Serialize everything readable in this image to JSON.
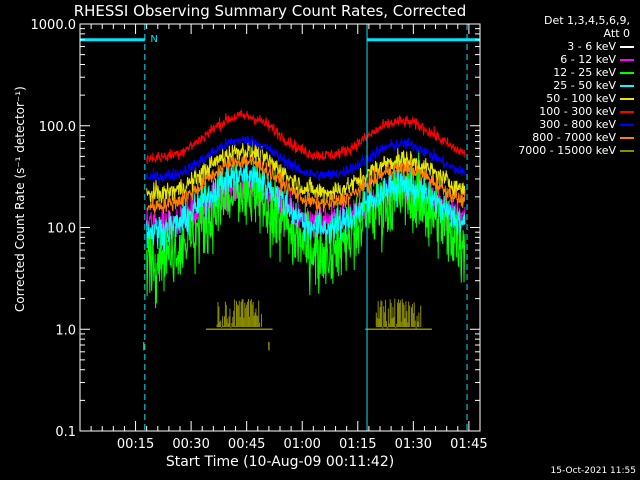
{
  "colors": {
    "background": "#000000",
    "axes": "#ffffff",
    "marker": "#00e5ff"
  },
  "chart_data": {
    "type": "line",
    "title": "RHESSI Observing Summary Count Rates, Corrected",
    "xlabel": "Start Time (10-Aug-09 00:11:42)",
    "ylabel": "Corrected Count Rate (s⁻¹ detector⁻¹)",
    "yscale": "log",
    "ylim": [
      0.1,
      1000
    ],
    "xlim_minutes": [
      0,
      108
    ],
    "y_ticks": [
      {
        "value": 0.1,
        "label": "0.1"
      },
      {
        "value": 1,
        "label": "1.0"
      },
      {
        "value": 10,
        "label": "10.0"
      },
      {
        "value": 100,
        "label": "100.0"
      },
      {
        "value": 1000,
        "label": "1000.0"
      }
    ],
    "x_ticks": [
      {
        "minute": 15,
        "label": "00:15"
      },
      {
        "minute": 30,
        "label": "00:30"
      },
      {
        "minute": 45,
        "label": "00:45"
      },
      {
        "minute": 60,
        "label": "01:00"
      },
      {
        "minute": 75,
        "label": "01:15"
      },
      {
        "minute": 90,
        "label": "01:30"
      },
      {
        "minute": 105,
        "label": "01:45"
      }
    ],
    "legend_header": [
      "Det 1,3,4,5,6,9,",
      "Att 0"
    ],
    "series": [
      {
        "name": "3 - 6 keV",
        "color": "#000000",
        "base": 5,
        "peaks": [
          16,
          15
        ],
        "noise": 0.18,
        "dropouts": true
      },
      {
        "name": "6 - 12 keV",
        "color": "#ff00ff",
        "base": 11,
        "peaks": [
          24,
          23
        ],
        "noise": 0.08
      },
      {
        "name": "12 - 25 keV",
        "color": "#00ff00",
        "base": 5.5,
        "peaks": [
          21,
          21
        ],
        "noise": 0.18,
        "dropouts": true
      },
      {
        "name": "25 - 50 keV",
        "color": "#00ffff",
        "base": 9,
        "peaks": [
          33,
          26
        ],
        "noise": 0.08
      },
      {
        "name": "50 - 100 keV",
        "color": "#e6e600",
        "base": 21,
        "peaks": [
          57,
          46
        ],
        "noise": 0.05
      },
      {
        "name": "100 - 300 keV",
        "color": "#ff0000",
        "base": 48,
        "peaks": [
          125,
          110
        ],
        "noise": 0.03
      },
      {
        "name": "300 - 800 keV",
        "color": "#0000ff",
        "base": 31,
        "peaks": [
          72,
          66
        ],
        "noise": 0.03
      },
      {
        "name": "800 - 7000 keV",
        "color": "#ff8000",
        "base": 16,
        "peaks": [
          45,
          38
        ],
        "noise": 0.04
      },
      {
        "name": "7000 - 15000 keV",
        "color": "#8c8c00",
        "base": null,
        "peaks": [
          2,
          2
        ],
        "noise": 0.0
      }
    ],
    "peak_times_minutes": [
      44,
      87
    ],
    "peak_width_minutes": 11,
    "annotations": {
      "night_intervals_minutes": [
        [
          0,
          17.5
        ],
        [
          77.5,
          108
        ]
      ],
      "night_level": 700,
      "night_label": "N",
      "night_label_minute": 19,
      "vertical_markers": [
        {
          "minute": 0,
          "style": "solid"
        },
        {
          "minute": 17.5,
          "style": "dashed"
        },
        {
          "minute": 77.5,
          "style": "solid"
        },
        {
          "minute": 104.5,
          "style": "dashed"
        }
      ]
    }
  },
  "timestamp": "15-Oct-2021 11:55"
}
